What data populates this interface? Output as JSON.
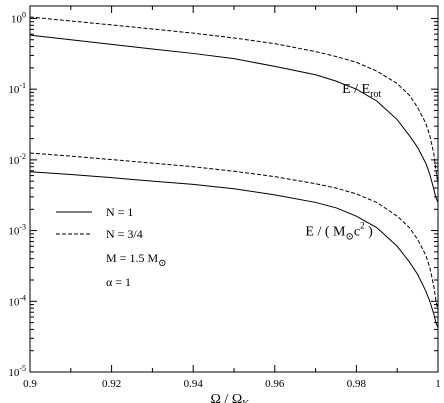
{
  "chart_data": {
    "type": "line",
    "xlabel": "Ω / Ω",
    "xlabel_sub": "K",
    "ylabel": "",
    "xlim": [
      0.9,
      1.0
    ],
    "ylim": [
      1e-05,
      1.5
    ],
    "yscale": "log",
    "grid": false,
    "x_ticks": [
      0.9,
      0.92,
      0.94,
      0.96,
      0.98,
      1.0
    ],
    "x_tick_labels": [
      "0.9",
      "0.92",
      "0.94",
      "0.96",
      "0.98",
      "1"
    ],
    "y_ticks": [
      {
        "value": 1e-05,
        "base": "10",
        "exp": "-5"
      },
      {
        "value": 0.0001,
        "base": "10",
        "exp": "-4"
      },
      {
        "value": 0.001,
        "base": "10",
        "exp": "-3"
      },
      {
        "value": 0.01,
        "base": "10",
        "exp": "-2"
      },
      {
        "value": 0.1,
        "base": "10",
        "exp": "-1"
      },
      {
        "value": 1,
        "base": "10",
        "exp": "0"
      }
    ],
    "annotations": [
      {
        "id": "rot",
        "prefix": "E / E",
        "sub": "rot",
        "after": "",
        "x": 0.9765,
        "y": 0.088
      },
      {
        "id": "mass",
        "prefix": "E / ( M",
        "sub": "⊙",
        "mid": "c",
        "sup": "2",
        "after": " )",
        "x": 0.9675,
        "y": 0.00085
      }
    ],
    "legend": {
      "position": "left-center",
      "entries": [
        {
          "label": "N = 1",
          "style": "solid"
        },
        {
          "label": "N = 3/4",
          "style": "dashed"
        }
      ],
      "params": [
        {
          "text": "M = 1.5 M",
          "sub": "⊙"
        },
        {
          "text": "α = 1",
          "sub": ""
        }
      ]
    },
    "series": [
      {
        "group": "E/Erot",
        "style": "solid",
        "x": [
          0.9,
          0.91,
          0.92,
          0.93,
          0.94,
          0.95,
          0.96,
          0.97,
          0.975,
          0.98,
          0.985,
          0.99,
          0.993,
          0.995,
          0.997,
          0.998,
          0.999,
          0.9995,
          1.0
        ],
        "y": [
          0.58,
          0.5,
          0.43,
          0.37,
          0.32,
          0.27,
          0.21,
          0.16,
          0.13,
          0.1,
          0.068,
          0.037,
          0.022,
          0.015,
          0.009,
          0.0062,
          0.0038,
          0.0029,
          0.0025
        ]
      },
      {
        "group": "E/Erot",
        "style": "dashed",
        "x": [
          0.9,
          0.91,
          0.92,
          0.93,
          0.94,
          0.95,
          0.96,
          0.97,
          0.975,
          0.98,
          0.985,
          0.99,
          0.993,
          0.995,
          0.997,
          0.998,
          0.999,
          0.9995,
          1.0
        ],
        "y": [
          1.05,
          0.92,
          0.81,
          0.71,
          0.62,
          0.53,
          0.44,
          0.34,
          0.29,
          0.24,
          0.18,
          0.12,
          0.082,
          0.055,
          0.033,
          0.022,
          0.012,
          0.007,
          0.0045
        ]
      },
      {
        "group": "E/(Msun c^2)",
        "style": "solid",
        "x": [
          0.9,
          0.91,
          0.92,
          0.93,
          0.94,
          0.95,
          0.96,
          0.97,
          0.975,
          0.98,
          0.985,
          0.99,
          0.993,
          0.995,
          0.997,
          0.998,
          0.999,
          0.9995,
          1.0
        ],
        "y": [
          0.0068,
          0.0062,
          0.0056,
          0.005,
          0.0045,
          0.0039,
          0.0032,
          0.0025,
          0.0021,
          0.0016,
          0.0011,
          0.0006,
          0.00036,
          0.00024,
          0.00014,
          0.0001,
          6.5e-05,
          5e-05,
          4.2e-05
        ]
      },
      {
        "group": "E/(Msun c^2)",
        "style": "dashed",
        "x": [
          0.9,
          0.91,
          0.92,
          0.93,
          0.94,
          0.95,
          0.96,
          0.97,
          0.975,
          0.98,
          0.985,
          0.99,
          0.993,
          0.995,
          0.997,
          0.998,
          0.999,
          0.9995,
          1.0
        ],
        "y": [
          0.0125,
          0.0113,
          0.0101,
          0.009,
          0.008,
          0.0069,
          0.0058,
          0.0046,
          0.004,
          0.0033,
          0.0025,
          0.0016,
          0.0011,
          0.00075,
          0.00045,
          0.0003,
          0.00016,
          0.0001,
          7.5e-05
        ]
      }
    ]
  }
}
